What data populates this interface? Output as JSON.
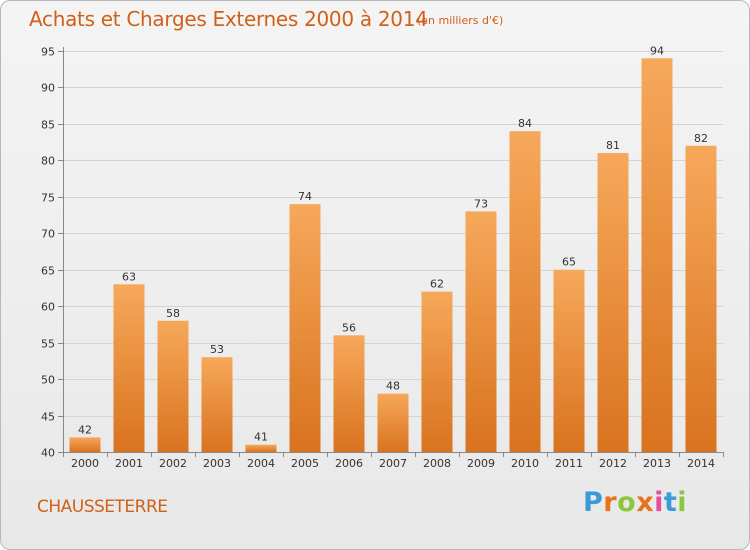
{
  "header": {
    "title": "Achats et Charges Externes 2000 à 2014",
    "subtitle": "(en milliers d'€)"
  },
  "footer": {
    "place": "CHAUSSETERRE",
    "brand": "Proxiti",
    "brand_colors": [
      "#3a9ad9",
      "#e8731c",
      "#8cc63f",
      "#e8731c",
      "#e84c9a",
      "#3a9ad9",
      "#8cc63f"
    ]
  },
  "colors": {
    "bar_top": "#f6a85a",
    "bar_bottom": "#d9731f",
    "grid": "#d4d4d4",
    "axis": "#888888"
  },
  "chart_data": {
    "type": "bar",
    "categories": [
      "2000",
      "2001",
      "2002",
      "2003",
      "2004",
      "2005",
      "2006",
      "2007",
      "2008",
      "2009",
      "2010",
      "2011",
      "2012",
      "2013",
      "2014"
    ],
    "values": [
      42,
      63,
      58,
      53,
      41,
      74,
      56,
      48,
      62,
      73,
      84,
      65,
      81,
      94,
      82
    ],
    "ylim": [
      40,
      95
    ],
    "yticks": [
      40,
      45,
      50,
      55,
      60,
      65,
      70,
      75,
      80,
      85,
      90,
      95
    ],
    "grid": true,
    "data_labels": true
  }
}
